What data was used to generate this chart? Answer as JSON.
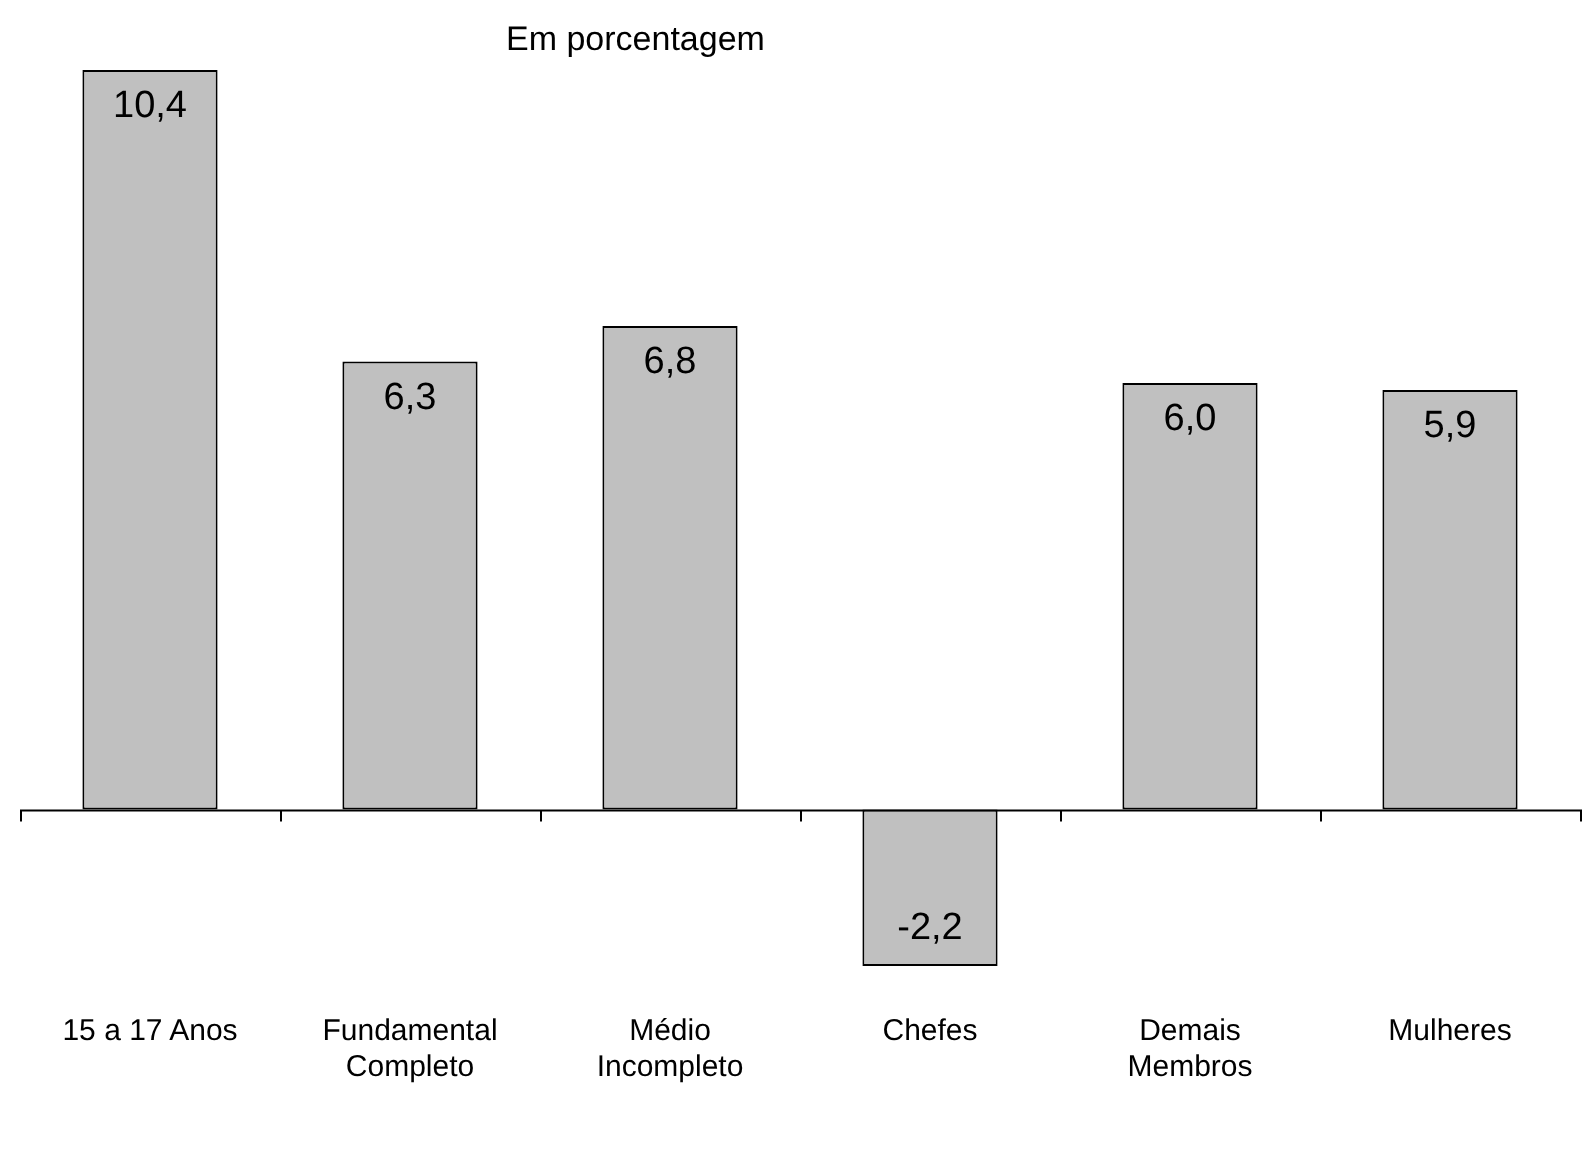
{
  "chart_data": {
    "type": "bar",
    "subtitle": "Em porcentagem",
    "categories": [
      "15 a 17 Anos",
      "Fundamental\nCompleto",
      "Médio\nIncompleto",
      "Chefes",
      "Demais\nMembros",
      "Mulheres"
    ],
    "values": [
      10.4,
      6.3,
      6.8,
      -2.2,
      6.0,
      5.9
    ],
    "value_labels": [
      "10,4",
      "6,3",
      "6,8",
      "-2,2",
      "6,0",
      "5,9"
    ],
    "color": "#c0c0c0",
    "grid": false,
    "legend": false
  }
}
